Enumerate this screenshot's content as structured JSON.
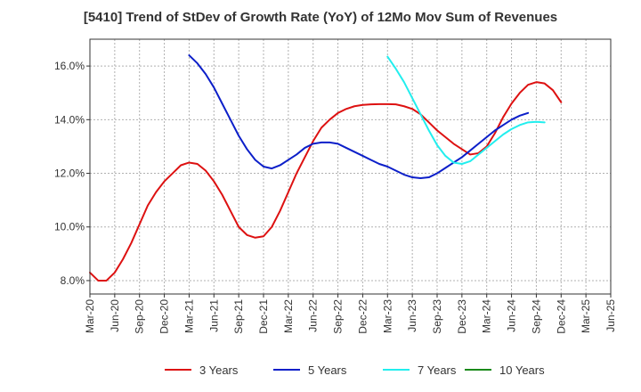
{
  "chart_data": {
    "type": "line",
    "title": "[5410]  Trend of StDev of Growth Rate (YoY) of 12Mo Mov Sum of Revenues",
    "xlabel": "",
    "ylabel": "",
    "x_ticks": [
      "Mar-20",
      "Jun-20",
      "Sep-20",
      "Dec-20",
      "Mar-21",
      "Jun-21",
      "Sep-21",
      "Dec-21",
      "Mar-22",
      "Jun-22",
      "Sep-22",
      "Dec-22",
      "Mar-23",
      "Jun-23",
      "Sep-23",
      "Dec-23",
      "Mar-24",
      "Jun-24",
      "Sep-24",
      "Dec-24",
      "Mar-25",
      "Jun-25"
    ],
    "y_ticks": [
      8.0,
      10.0,
      12.0,
      14.0,
      16.0
    ],
    "y_tick_labels": [
      "8.0%",
      "10.0%",
      "12.0%",
      "14.0%",
      "16.0%"
    ],
    "ylim": [
      7.5,
      17.0
    ],
    "grid": true,
    "legend_position": "bottom",
    "series": [
      {
        "name": "3 Years",
        "color": "#dd1111",
        "start_index": 0,
        "values": [
          8.3,
          8.0,
          8.0,
          8.3,
          8.8,
          9.4,
          10.1,
          10.8,
          11.3,
          11.7,
          12.0,
          12.3,
          12.4,
          12.35,
          12.1,
          11.7,
          11.2,
          10.6,
          10.0,
          9.7,
          9.6,
          9.65,
          10.0,
          10.6,
          11.3,
          12.0,
          12.6,
          13.2,
          13.7,
          14.0,
          14.25,
          14.4,
          14.5,
          14.55,
          14.57,
          14.58,
          14.58,
          14.57,
          14.5,
          14.4,
          14.2,
          13.9,
          13.6,
          13.35,
          13.1,
          12.9,
          12.7,
          12.75,
          13.0,
          13.5,
          14.1,
          14.6,
          15.0,
          15.3,
          15.4,
          15.35,
          15.1,
          14.65
        ]
      },
      {
        "name": "5 Years",
        "color": "#0c1fc9",
        "start_index": 12,
        "values": [
          16.4,
          16.1,
          15.7,
          15.2,
          14.6,
          14.0,
          13.4,
          12.9,
          12.5,
          12.25,
          12.18,
          12.3,
          12.5,
          12.7,
          12.95,
          13.1,
          13.15,
          13.15,
          13.1,
          12.95,
          12.8,
          12.65,
          12.5,
          12.35,
          12.25,
          12.1,
          11.95,
          11.85,
          11.82,
          11.85,
          12.0,
          12.2,
          12.4,
          12.6,
          12.85,
          13.1,
          13.35,
          13.6,
          13.8,
          14.0,
          14.15,
          14.25
        ]
      },
      {
        "name": "7 Years",
        "color": "#22eeee",
        "start_index": 36,
        "values": [
          16.35,
          15.9,
          15.4,
          14.8,
          14.2,
          13.6,
          13.05,
          12.65,
          12.4,
          12.35,
          12.45,
          12.7,
          12.95,
          13.2,
          13.45,
          13.65,
          13.8,
          13.9,
          13.92,
          13.9
        ]
      },
      {
        "name": "10 Years",
        "color": "#1a8a1a",
        "start_index": 0,
        "values": []
      }
    ]
  }
}
